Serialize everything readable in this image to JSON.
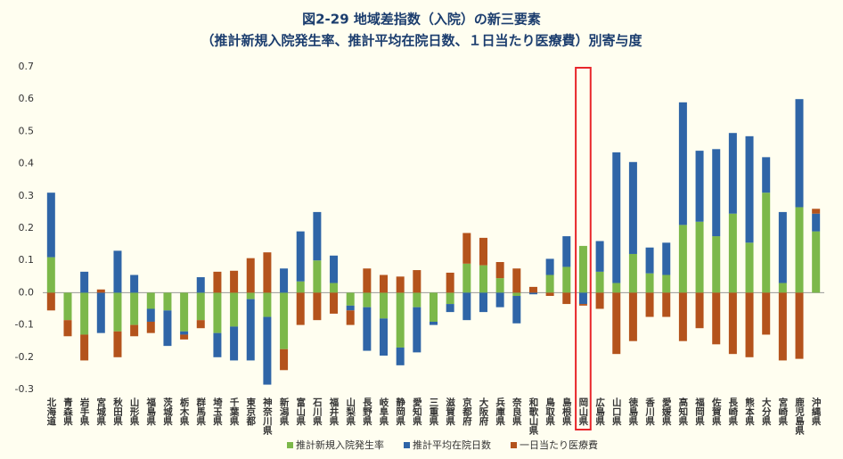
{
  "chart_data": {
    "type": "bar",
    "stacked": true,
    "title": "図2-29 地域差指数（入院）の新三要素",
    "subtitle": "（推計新規入院発生率、推計平均在院日数、１日当たり医療費）別寄与度",
    "categories": [
      "北海道",
      "青森県",
      "岩手県",
      "宮城県",
      "秋田県",
      "山形県",
      "福島県",
      "茨城県",
      "栃木県",
      "群馬県",
      "埼玉県",
      "千葉県",
      "東京都",
      "神奈川県",
      "新潟県",
      "富山県",
      "石川県",
      "福井県",
      "山梨県",
      "長野県",
      "岐阜県",
      "静岡県",
      "愛知県",
      "三重県",
      "滋賀県",
      "京都府",
      "大阪府",
      "兵庫県",
      "奈良県",
      "和歌山県",
      "鳥取県",
      "島根県",
      "岡山県",
      "広島県",
      "山口県",
      "徳島県",
      "香川県",
      "愛媛県",
      "高知県",
      "福岡県",
      "佐賀県",
      "長崎県",
      "熊本県",
      "大分県",
      "宮崎県",
      "鹿児島県",
      "沖縄県"
    ],
    "series": [
      {
        "name": "推計新規入院発生率",
        "color": "#7cb84a",
        "values": [
          0.11,
          -0.085,
          -0.13,
          0,
          -0.12,
          -0.1,
          -0.05,
          -0.055,
          -0.12,
          -0.085,
          -0.125,
          -0.105,
          -0.02,
          -0.075,
          -0.175,
          0.035,
          0.1,
          0.03,
          -0.04,
          -0.045,
          -0.08,
          -0.17,
          -0.045,
          -0.09,
          -0.035,
          0.09,
          0.085,
          0.045,
          -0.01,
          0,
          0.055,
          0.08,
          0.145,
          0.065,
          0.03,
          0.12,
          0.06,
          0.055,
          0.21,
          0.22,
          0.175,
          0.245,
          0.155,
          0.31,
          0.03,
          0.265,
          0.19
        ]
      },
      {
        "name": "推計平均在院日数",
        "color": "#2f65a7",
        "values": [
          0.2,
          0,
          0.065,
          -0.125,
          0.13,
          0.055,
          -0.04,
          -0.11,
          -0.01,
          0.048,
          -0.075,
          -0.105,
          -0.19,
          -0.21,
          0.075,
          0.155,
          0.15,
          0.085,
          -0.015,
          -0.135,
          -0.115,
          -0.055,
          -0.14,
          -0.01,
          -0.025,
          -0.085,
          -0.06,
          -0.045,
          -0.085,
          -0.005,
          0.05,
          0.095,
          -0.035,
          0.095,
          0.405,
          0.285,
          0.08,
          0.1,
          0.38,
          0.22,
          0.27,
          0.25,
          0.33,
          0.11,
          0.22,
          0.335,
          0.055
        ]
      },
      {
        "name": "一日当たり医療費",
        "color": "#b4531c",
        "values": [
          -0.055,
          -0.05,
          -0.08,
          0.01,
          -0.08,
          -0.035,
          -0.035,
          0,
          -0.015,
          -0.025,
          0.065,
          0.068,
          0.107,
          0.125,
          -0.065,
          -0.1,
          -0.085,
          -0.065,
          -0.045,
          0.075,
          0.055,
          0.05,
          0.07,
          0,
          0.062,
          0.095,
          0.085,
          0.05,
          0.075,
          0.018,
          -0.01,
          -0.035,
          -0.005,
          -0.05,
          -0.19,
          -0.15,
          -0.075,
          -0.075,
          -0.15,
          -0.11,
          -0.16,
          -0.19,
          -0.2,
          -0.13,
          -0.21,
          -0.205,
          0.015
        ]
      }
    ],
    "ylim": [
      -0.3,
      0.7
    ],
    "yticks": [
      -0.3,
      -0.2,
      -0.1,
      {
        "value": 0,
        "label": "0.0"
      },
      0.1,
      0.2,
      0.3,
      0.4,
      0.5,
      0.6,
      0.7
    ],
    "grid": false,
    "legend": "bottom"
  }
}
